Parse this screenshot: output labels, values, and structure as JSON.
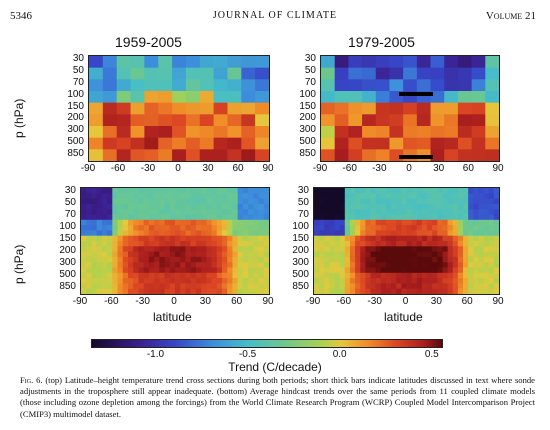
{
  "header": {
    "page_number": "5346",
    "journal": "JOURNAL OF CLIMATE",
    "volume": "Volume 21"
  },
  "panels": {
    "top_left": {
      "title": "1959-2005"
    },
    "top_right": {
      "title": "1979-2005"
    },
    "bottom_left": {
      "xlabel": "latitude"
    },
    "bottom_right": {
      "xlabel": "latitude"
    }
  },
  "axes": {
    "ylabel": "p (hPa)",
    "pressure_ticks": [
      "30",
      "50",
      "70",
      "100",
      "150",
      "200",
      "300",
      "500",
      "850"
    ],
    "latitude_ticks": [
      "-90",
      "-60",
      "-30",
      "0",
      "30",
      "60",
      "90"
    ]
  },
  "colorbar": {
    "title": "Trend (C/decade)",
    "ticks": [
      "-1.0",
      "-0.5",
      "0.0",
      "0.5"
    ],
    "range": [
      -1.35,
      0.55
    ]
  },
  "caption": {
    "label": "Fig. 6.",
    "text": " (top) Latitude–height temperature trend cross sections during both periods; short thick bars indicate latitudes discussed in text where sonde adjustments in the troposphere still appear inadequate. (bottom) Average hindcast trends over the same periods from 11 coupled climate models (those including ozone depletion among the forcings) from the World Climate Research Program (WCRP) Coupled Model Intercomparison Project (CMIP3) multimodel dataset."
  }
}
